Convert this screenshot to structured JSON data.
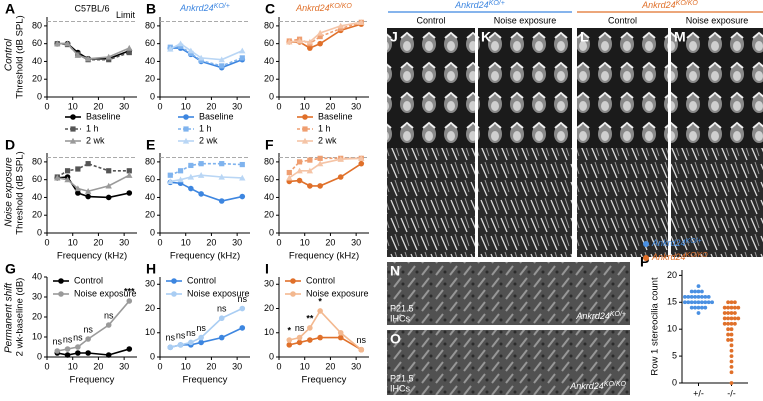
{
  "chart_data": [
    {
      "label": "A",
      "type": "line",
      "title": "C57BL/6",
      "title_color": "#000000",
      "title_italic": false,
      "ref_line": 85,
      "ref_label": "Limit",
      "ylabel": "Threshold (dB SPL)",
      "x": [
        4,
        8,
        12,
        16,
        24,
        32
      ],
      "xlim": [
        0,
        35
      ],
      "xticks": [
        0,
        10,
        20,
        30
      ],
      "ylim": [
        0,
        90
      ],
      "yticks": [
        0,
        20,
        40,
        60,
        80
      ],
      "legend": "below",
      "series": [
        {
          "name": "Baseline",
          "color": "#000000",
          "marker": "circle",
          "dashed": false,
          "values": [
            60,
            60,
            50,
            43,
            43,
            52
          ]
        },
        {
          "name": "1 h",
          "color": "#555555",
          "marker": "square",
          "dashed": true,
          "values": [
            60,
            59,
            48,
            42,
            42,
            50
          ]
        },
        {
          "name": "2 wk",
          "color": "#9a9a9a",
          "marker": "triangle",
          "dashed": false,
          "values": [
            60,
            60,
            47,
            43,
            45,
            55
          ]
        }
      ]
    },
    {
      "label": "B",
      "type": "line",
      "title": "Ankrd24",
      "title_sup": "KO/+",
      "title_color": "#3d86e0",
      "title_italic": true,
      "ref_line": 85,
      "x": [
        4,
        8,
        12,
        16,
        24,
        32
      ],
      "xlim": [
        0,
        35
      ],
      "xticks": [
        0,
        10,
        20,
        30
      ],
      "ylim": [
        0,
        90
      ],
      "yticks": [
        0,
        20,
        40,
        60,
        80
      ],
      "legend": "below",
      "series": [
        {
          "name": "Baseline",
          "color": "#3d86e0",
          "marker": "circle",
          "dashed": false,
          "values": [
            55,
            55,
            48,
            40,
            33,
            42
          ]
        },
        {
          "name": "1 h",
          "color": "#7fb3ee",
          "marker": "square",
          "dashed": true,
          "values": [
            56,
            57,
            49,
            41,
            35,
            44
          ]
        },
        {
          "name": "2 wk",
          "color": "#b9d6f5",
          "marker": "triangle",
          "dashed": false,
          "values": [
            54,
            60,
            52,
            44,
            42,
            52
          ]
        }
      ]
    },
    {
      "label": "C",
      "type": "line",
      "title": "Ankrd24",
      "title_sup": "KO/KO",
      "title_color": "#e0702a",
      "title_italic": true,
      "ref_line": 85,
      "x": [
        4,
        8,
        12,
        16,
        24,
        32
      ],
      "xlim": [
        0,
        35
      ],
      "xticks": [
        0,
        10,
        20,
        30
      ],
      "ylim": [
        0,
        90
      ],
      "yticks": [
        0,
        20,
        40,
        60,
        80
      ],
      "legend": "below",
      "series": [
        {
          "name": "Baseline",
          "color": "#e0702a",
          "marker": "circle",
          "dashed": false,
          "values": [
            62,
            62,
            55,
            60,
            75,
            82
          ]
        },
        {
          "name": "1 h",
          "color": "#ef9e70",
          "marker": "square",
          "dashed": true,
          "values": [
            63,
            65,
            60,
            68,
            77,
            84
          ]
        },
        {
          "name": "2 wk",
          "color": "#f5c4a6",
          "marker": "triangle",
          "dashed": false,
          "values": [
            62,
            63,
            62,
            72,
            80,
            84
          ]
        }
      ]
    },
    {
      "label": "D",
      "type": "line",
      "ref_line": 85,
      "ylabel": "Threshold (dB SPL)",
      "xlabel": "Frequency (kHz)",
      "x": [
        4,
        8,
        12,
        16,
        24,
        32
      ],
      "xlim": [
        0,
        35
      ],
      "xticks": [
        0,
        10,
        20,
        30
      ],
      "ylim": [
        0,
        90
      ],
      "yticks": [
        0,
        20,
        40,
        60,
        80
      ],
      "series": [
        {
          "color": "#000000",
          "marker": "circle",
          "dashed": false,
          "values": [
            62,
            63,
            45,
            41,
            40,
            45
          ]
        },
        {
          "color": "#555555",
          "marker": "square",
          "dashed": true,
          "values": [
            63,
            70,
            72,
            78,
            70,
            70
          ]
        },
        {
          "color": "#9a9a9a",
          "marker": "triangle",
          "dashed": false,
          "values": [
            62,
            60,
            50,
            47,
            53,
            65
          ]
        }
      ]
    },
    {
      "label": "E",
      "type": "line",
      "ref_line": 85,
      "xlabel": "Frequency (kHz)",
      "x": [
        4,
        8,
        12,
        16,
        24,
        32
      ],
      "xlim": [
        0,
        35
      ],
      "xticks": [
        0,
        10,
        20,
        30
      ],
      "ylim": [
        0,
        90
      ],
      "yticks": [
        0,
        20,
        40,
        60,
        80
      ],
      "series": [
        {
          "color": "#3d86e0",
          "marker": "circle",
          "dashed": false,
          "values": [
            57,
            56,
            50,
            44,
            36,
            41
          ]
        },
        {
          "color": "#7fb3ee",
          "marker": "square",
          "dashed": true,
          "values": [
            65,
            70,
            76,
            78,
            78,
            77
          ]
        },
        {
          "color": "#b9d6f5",
          "marker": "triangle",
          "dashed": false,
          "values": [
            58,
            60,
            63,
            65,
            63,
            62
          ]
        }
      ]
    },
    {
      "label": "F",
      "type": "line",
      "ref_line": 85,
      "xlabel": "Frequency (kHz)",
      "x": [
        4,
        8,
        12,
        16,
        24,
        32
      ],
      "xlim": [
        0,
        35
      ],
      "xticks": [
        0,
        10,
        20,
        30
      ],
      "ylim": [
        0,
        90
      ],
      "yticks": [
        0,
        20,
        40,
        60,
        80
      ],
      "series": [
        {
          "color": "#e0702a",
          "marker": "circle",
          "dashed": false,
          "values": [
            58,
            59,
            53,
            53,
            63,
            78
          ]
        },
        {
          "color": "#ef9e70",
          "marker": "square",
          "dashed": true,
          "values": [
            68,
            80,
            82,
            84,
            84,
            84
          ]
        },
        {
          "color": "#f5c4a6",
          "marker": "triangle",
          "dashed": false,
          "values": [
            62,
            70,
            70,
            78,
            83,
            84
          ]
        }
      ]
    },
    {
      "label": "G",
      "type": "line",
      "ylabel": "2 wk-baseline (dB)",
      "xlabel": "Frequency",
      "x": [
        4,
        8,
        12,
        16,
        24,
        32
      ],
      "xlim": [
        0,
        35
      ],
      "xticks": [
        0,
        10,
        20,
        30
      ],
      "ylim": [
        0,
        40
      ],
      "yticks": [
        0,
        10,
        20,
        30,
        40
      ],
      "legend": "inside",
      "annotations": [
        "ns",
        "ns",
        "ns",
        "ns",
        "ns",
        "***"
      ],
      "series": [
        {
          "name": "Control",
          "color": "#000000",
          "marker": "circle",
          "dashed": false,
          "values": [
            2,
            1,
            2,
            2,
            1,
            4
          ]
        },
        {
          "name": "Noise exposure",
          "color": "#9a9a9a",
          "marker": "circle",
          "dashed": false,
          "values": [
            3,
            4,
            5,
            9,
            16,
            28
          ]
        }
      ]
    },
    {
      "label": "H",
      "type": "line",
      "xlabel": "Frequency",
      "x": [
        4,
        8,
        12,
        16,
        24,
        32
      ],
      "xlim": [
        0,
        35
      ],
      "xticks": [
        0,
        10,
        20,
        30
      ],
      "ylim": [
        0,
        33
      ],
      "yticks": [
        0,
        10,
        20,
        30
      ],
      "legend": "inside",
      "annotations": [
        "ns",
        "ns",
        "ns",
        "ns",
        "ns",
        "ns"
      ],
      "series": [
        {
          "name": "Control",
          "color": "#3d86e0",
          "marker": "circle",
          "dashed": false,
          "values": [
            4,
            5,
            5,
            6,
            8,
            12
          ]
        },
        {
          "name": "Noise exposure",
          "color": "#a9cdf3",
          "marker": "circle",
          "dashed": false,
          "values": [
            4,
            5,
            6,
            8,
            16,
            20
          ]
        }
      ]
    },
    {
      "label": "I",
      "type": "line",
      "xlabel": "Frequency",
      "x": [
        4,
        8,
        12,
        16,
        24,
        32
      ],
      "xlim": [
        0,
        35
      ],
      "xticks": [
        0,
        10,
        20,
        30
      ],
      "ylim": [
        0,
        33
      ],
      "yticks": [
        0,
        10,
        20,
        30
      ],
      "legend": "inside",
      "annotations": [
        "*",
        "ns",
        "**",
        "*",
        null,
        "ns"
      ],
      "series": [
        {
          "name": "Control",
          "color": "#e0702a",
          "marker": "circle",
          "dashed": false,
          "values": [
            5,
            6,
            7,
            8,
            8,
            3
          ]
        },
        {
          "name": "Noise exposure",
          "color": "#f3b88f",
          "marker": "circle",
          "dashed": false,
          "values": [
            7,
            8,
            12,
            19,
            10,
            3
          ]
        }
      ]
    },
    {
      "label": "P",
      "type": "strip",
      "ylabel": "Row 1 stereocilia count",
      "categories": [
        "+/-",
        "-/-"
      ],
      "ylim": [
        0,
        21
      ],
      "yticks": [
        0,
        5,
        10,
        15,
        20
      ],
      "series": [
        {
          "name": "Ankrd24",
          "name_sup": "KO/+",
          "color": "#4a90e2",
          "values": [
            18,
            17,
            17,
            17,
            16,
            16,
            16,
            16,
            16,
            16,
            15,
            15,
            15,
            15,
            15,
            15,
            15,
            14,
            14,
            14,
            14,
            13,
            16,
            17,
            15,
            16,
            14,
            15
          ]
        },
        {
          "name": "Ankrd24",
          "name_sup": "KO/KO",
          "color": "#e0702a",
          "values": [
            15,
            15,
            15,
            14,
            14,
            14,
            14,
            13,
            13,
            13,
            12,
            12,
            12,
            12,
            11,
            11,
            11,
            10,
            10,
            9,
            9,
            8,
            8,
            7,
            6,
            5,
            4,
            3,
            2,
            0,
            13,
            14,
            11,
            12
          ]
        }
      ]
    }
  ],
  "figure": {
    "row_labels": [
      "Control",
      "Noise exposure",
      "Permanent shift"
    ],
    "header": [
      {
        "gene": "Ankrd24",
        "genotype": "KO/+"
      },
      {
        "gene": "Ankrd24",
        "genotype": "KO/KO"
      }
    ],
    "panels": [
      {
        "label": "J",
        "caption": "Control"
      },
      {
        "label": "K",
        "caption": "Noise exposure"
      },
      {
        "label": "L",
        "caption": "Control"
      },
      {
        "label": "M",
        "caption": "Noise exposure"
      }
    ],
    "sem": [
      {
        "label": "N",
        "stage": "P21.5",
        "cell": "IHCs",
        "gene": "Ankrd24",
        "genotype": "KO/+"
      },
      {
        "label": "O",
        "stage": "P21.5",
        "cell": "IHCs",
        "gene": "Ankrd24",
        "genotype": "KO/KO"
      }
    ]
  }
}
